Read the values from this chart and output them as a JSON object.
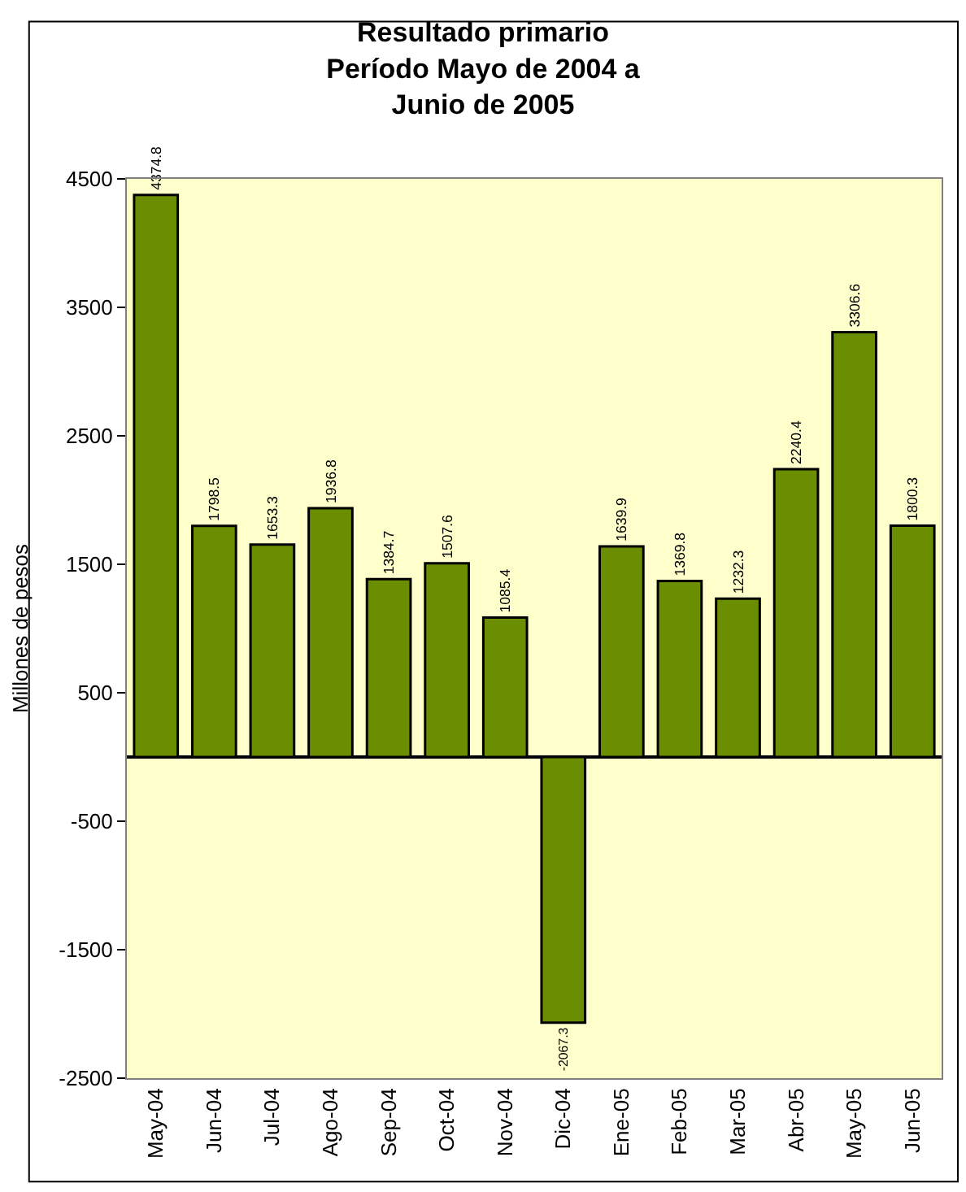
{
  "chart_data": {
    "type": "bar",
    "title": "Resultado primario\nPeríodo Mayo de 2004 a\nJunio de 2005",
    "ylabel": "Millones de pesos",
    "categories": [
      "May-04",
      "Jun-04",
      "Jul-04",
      "Ago-04",
      "Sep-04",
      "Oct-04",
      "Nov-04",
      "Dic-04",
      "Ene-05",
      "Feb-05",
      "Mar-05",
      "Abr-05",
      "May-05",
      "Jun-05"
    ],
    "values": [
      4374.8,
      1798.5,
      1653.3,
      1936.8,
      1384.7,
      1507.6,
      1085.4,
      -2067.3,
      1639.9,
      1369.8,
      1232.3,
      2240.4,
      3306.6,
      1800.3
    ],
    "color": "#6b8e00",
    "ylim": [
      -2500,
      4500
    ],
    "yticks": [
      -2500,
      -1500,
      -500,
      500,
      1500,
      2500,
      3500,
      4500
    ],
    "grid": false,
    "legend": false,
    "data_labels": true
  }
}
